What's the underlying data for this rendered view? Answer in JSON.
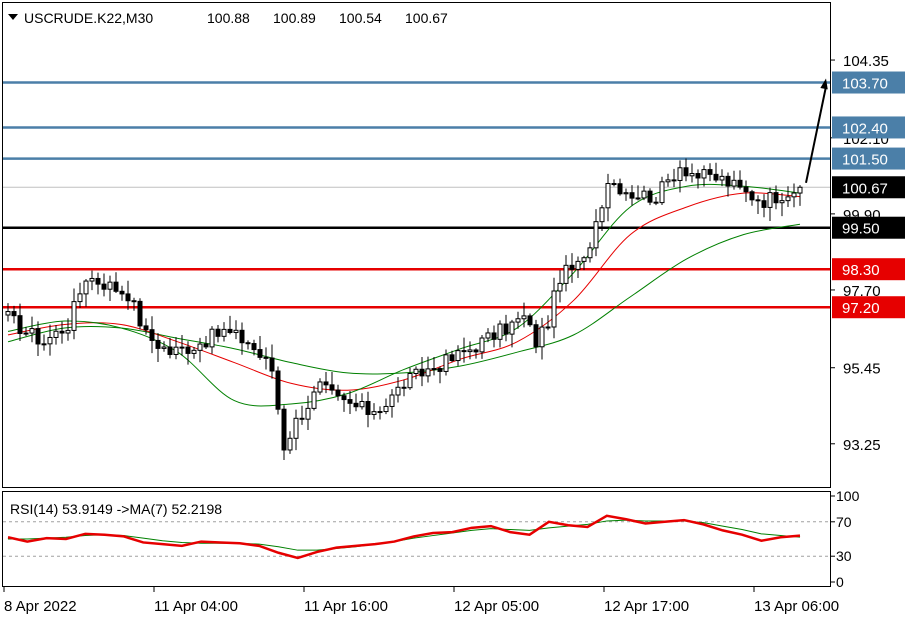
{
  "chart_data": [
    {
      "type": "candlestick",
      "header": {
        "symbol_timeframe": "USCRUDE.K22,M30",
        "ohlc": [
          "100.88",
          "100.89",
          "100.54",
          "100.67"
        ]
      },
      "ylim": [
        92.0,
        106.0
      ],
      "y_ticks": [
        "104.35",
        "102.10",
        "99.90",
        "97.70",
        "95.45",
        "93.25"
      ],
      "y_tick_values": [
        104.35,
        102.1,
        99.9,
        97.7,
        95.45,
        93.25
      ],
      "current_price": {
        "label": "100.67",
        "value": 100.67
      },
      "levels": [
        {
          "label": "103.70",
          "value": 103.7,
          "color": "#4b7fa8"
        },
        {
          "label": "102.40",
          "value": 102.4,
          "color": "#4b7fa8"
        },
        {
          "label": "101.50",
          "value": 101.5,
          "color": "#4b7fa8"
        },
        {
          "label": "99.50",
          "value": 99.5,
          "color": "#000000"
        },
        {
          "label": "98.30",
          "value": 98.3,
          "color": "#e60000"
        },
        {
          "label": "97.20",
          "value": 97.2,
          "color": "#e60000"
        }
      ],
      "x_ticks": [
        "8 Apr 2022",
        "11 Apr 04:00",
        "11 Apr 16:00",
        "12 Apr 05:00",
        "12 Apr 17:00",
        "13 Apr 06:00"
      ],
      "x_tick_bar_index": [
        0,
        25,
        50,
        75,
        100,
        125
      ],
      "bars_count": 133,
      "price_anchors": [
        [
          0,
          96.9
        ],
        [
          3,
          96.5
        ],
        [
          6,
          96.2
        ],
        [
          10,
          96.7
        ],
        [
          13,
          98.1
        ],
        [
          16,
          97.9
        ],
        [
          20,
          97.6
        ],
        [
          23,
          96.4
        ],
        [
          27,
          95.9
        ],
        [
          31,
          96.1
        ],
        [
          36,
          96.5
        ],
        [
          40,
          96.2
        ],
        [
          44,
          95.4
        ],
        [
          46,
          93.2
        ],
        [
          48,
          93.9
        ],
        [
          52,
          94.9
        ],
        [
          55,
          94.5
        ],
        [
          60,
          94.2
        ],
        [
          63,
          94.4
        ],
        [
          66,
          95.0
        ],
        [
          70,
          95.4
        ],
        [
          74,
          95.7
        ],
        [
          78,
          96.1
        ],
        [
          82,
          96.5
        ],
        [
          86,
          96.9
        ],
        [
          88,
          96.2
        ],
        [
          90,
          96.8
        ],
        [
          92,
          98.1
        ],
        [
          96,
          98.5
        ],
        [
          100,
          100.9
        ],
        [
          104,
          100.5
        ],
        [
          108,
          100.4
        ],
        [
          112,
          101.3
        ],
        [
          115,
          101.0
        ],
        [
          119,
          100.9
        ],
        [
          123,
          100.5
        ],
        [
          126,
          100.3
        ],
        [
          129,
          100.5
        ],
        [
          132,
          100.67
        ]
      ],
      "sma_fast": [
        96.5,
        96.8,
        96.6,
        95.9,
        94.5,
        94.4,
        94.7,
        95.4,
        96.0,
        96.6,
        98.2,
        100.1,
        100.7,
        100.7,
        100.5
      ],
      "sma_mid": [
        96.4,
        96.7,
        96.7,
        96.2,
        95.6,
        95.0,
        94.8,
        95.1,
        95.7,
        96.2,
        97.4,
        99.3,
        100.1,
        100.5,
        100.4
      ],
      "sma_slow": [
        96.2,
        96.6,
        96.6,
        96.3,
        96.0,
        95.6,
        95.3,
        95.3,
        95.5,
        95.9,
        96.4,
        97.5,
        98.6,
        99.3,
        99.6
      ],
      "sma_colors": {
        "fast": "#008000",
        "mid": "#e60000",
        "slow": "#008000"
      },
      "annotation": {
        "type": "arrow",
        "from": [
          132,
          100.8
        ],
        "to": [
          138,
          103.7
        ]
      }
    },
    {
      "type": "line",
      "header": "RSI(14) 53.9149  ->MA(7) 52.2198",
      "ylim": [
        0,
        100
      ],
      "y_ticks": [
        "100",
        "70",
        "30",
        "0"
      ],
      "y_tick_values": [
        100,
        70,
        30,
        0
      ],
      "levels": [
        70,
        30
      ],
      "series": [
        {
          "color": "#e60000",
          "values": [
            52,
            47,
            51,
            50,
            56,
            55,
            53,
            46,
            44,
            42,
            47,
            46,
            45,
            42,
            34,
            28,
            35,
            40,
            42,
            44,
            47,
            53,
            57,
            58,
            63,
            65,
            58,
            55,
            70,
            66,
            64,
            77,
            73,
            68,
            70,
            72,
            67,
            60,
            55,
            48,
            52,
            53.9
          ]
        },
        {
          "color": "#008000",
          "values": [
            50,
            50,
            51,
            52,
            54,
            55,
            54,
            51,
            48,
            46,
            45,
            45,
            45,
            44,
            41,
            37,
            37,
            39,
            41,
            44,
            47,
            51,
            54,
            57,
            60,
            62,
            61,
            60,
            63,
            65,
            67,
            71,
            72,
            71,
            71,
            71,
            69,
            65,
            61,
            56,
            54,
            52.2
          ]
        }
      ]
    }
  ]
}
